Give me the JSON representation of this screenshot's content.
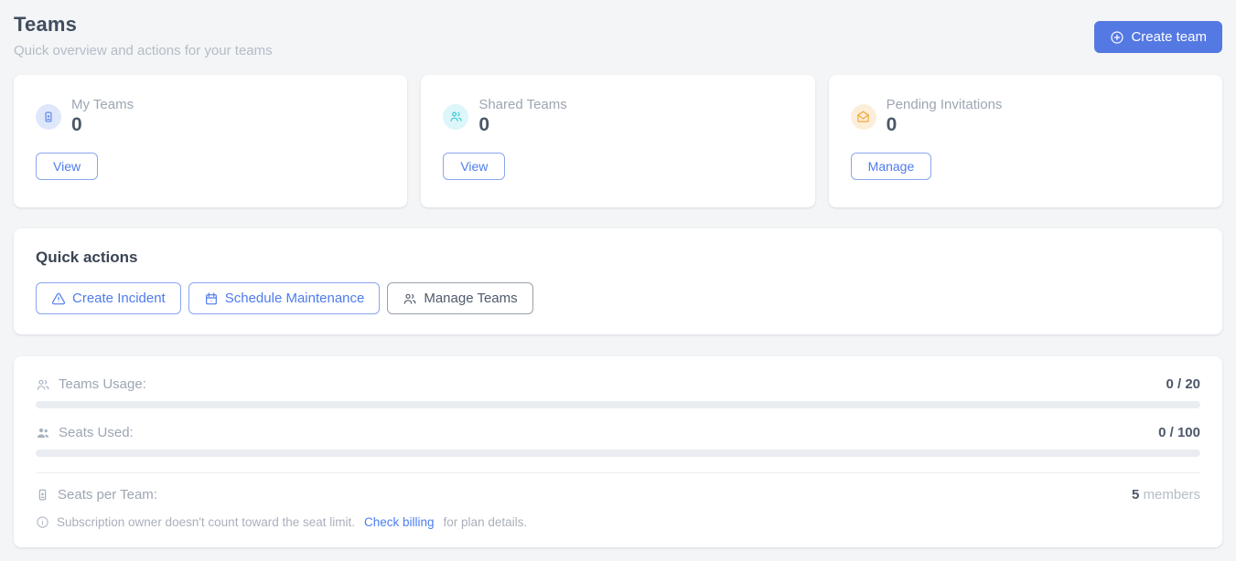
{
  "page": {
    "title": "Teams",
    "subtitle": "Quick overview and actions for your teams",
    "create_team_label": "Create team"
  },
  "stat_cards": [
    {
      "label": "My Teams",
      "value": "0",
      "action": "View",
      "icon": "id-badge-icon",
      "icon_color": "#5b82e8",
      "icon_bg": "#dfe8fb"
    },
    {
      "label": "Shared Teams",
      "value": "0",
      "action": "View",
      "icon": "users-icon",
      "icon_color": "#3fc9d6",
      "icon_bg": "#dcf6f9"
    },
    {
      "label": "Pending Invitations",
      "value": "0",
      "action": "Manage",
      "icon": "mail-open-icon",
      "icon_color": "#f3a93e",
      "icon_bg": "#fdeeda"
    }
  ],
  "quick_actions": {
    "title": "Quick actions",
    "buttons": [
      {
        "label": "Create Incident",
        "icon": "alert-triangle-icon",
        "style": "blue"
      },
      {
        "label": "Schedule Maintenance",
        "icon": "calendar-icon",
        "style": "blue"
      },
      {
        "label": "Manage Teams",
        "icon": "users-icon",
        "style": "neutral"
      }
    ]
  },
  "usage": {
    "rows": [
      {
        "label": "Teams Usage:",
        "used": 0,
        "total": 20,
        "display": "0 / 20",
        "icon": "users-outline-icon"
      },
      {
        "label": "Seats Used:",
        "used": 0,
        "total": 100,
        "display": "0 / 100",
        "icon": "users-filled-icon"
      }
    ],
    "seats_per_team": {
      "label": "Seats per Team:",
      "value": "5",
      "suffix": " members",
      "icon": "id-badge-icon"
    },
    "note": {
      "icon": "info-icon",
      "text": "Subscription owner doesn't count toward the seat limit.",
      "link": "Check billing",
      "suffix": "for plan details."
    }
  },
  "colors": {
    "accent_blue": "#5579e2",
    "link_blue": "#4a7df2",
    "icon_blue": "#5b82e8",
    "icon_cyan": "#3fc9d6",
    "icon_orange": "#f3a93e",
    "text_dark": "#414d5e",
    "text_muted": "#9da6b3",
    "track_gray": "#e9edf2"
  }
}
